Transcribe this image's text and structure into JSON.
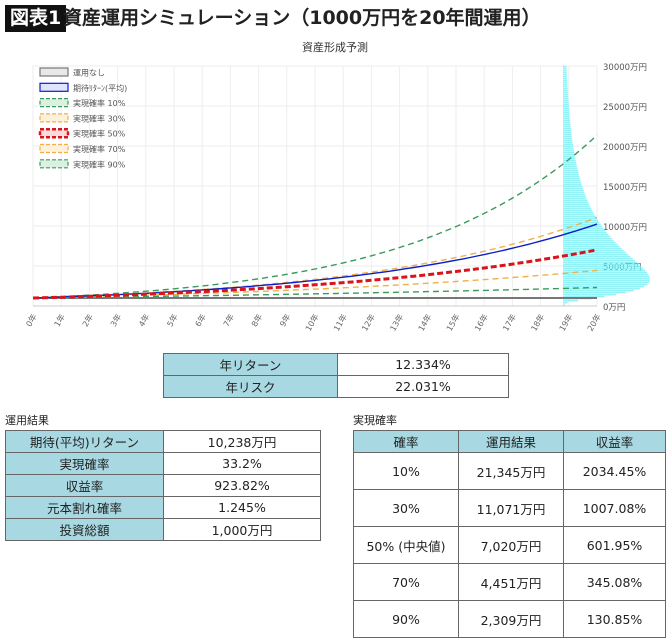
{
  "header": {
    "figure_label": "図表1",
    "title": "資産運用シミュレーション（1000万円を20年間運用）"
  },
  "chart_data": {
    "type": "line",
    "title": "資産形成予測",
    "x": [
      "0年",
      "1年",
      "2年",
      "3年",
      "4年",
      "5年",
      "6年",
      "7年",
      "8年",
      "9年",
      "10年",
      "11年",
      "12年",
      "13年",
      "14年",
      "15年",
      "16年",
      "17年",
      "18年",
      "19年",
      "20年"
    ],
    "y_ticks": [
      "0万円",
      "5000万円",
      "10000万円",
      "15000万円",
      "20000万円",
      "25000万円",
      "30000万円"
    ],
    "ylim": [
      0,
      30000
    ],
    "y_axis_position": "right",
    "grid": true,
    "legend_position": "top-left",
    "initial_value": 1000,
    "series": [
      {
        "name": "運用なし",
        "final": 1000,
        "color": "#777777",
        "style": "solid"
      },
      {
        "name": "期待ﾘﾀｰﾝ(平均)",
        "final": 10238,
        "color": "#0b1fc9",
        "style": "solid"
      },
      {
        "name": "実現確率 10%",
        "final": 21345,
        "color": "#3a9a5b",
        "style": "dashed"
      },
      {
        "name": "実現確率 30%",
        "final": 11071,
        "color": "#f0b048",
        "style": "dashed"
      },
      {
        "name": "実現確率 50%",
        "final": 7020,
        "color": "#d9141b",
        "style": "thick-dashed"
      },
      {
        "name": "実現確率 70%",
        "final": 4451,
        "color": "#f0b048",
        "style": "dashed"
      },
      {
        "name": "実現確率 90%",
        "final": 2309,
        "color": "#3a9a5b",
        "style": "dashed"
      }
    ],
    "distribution": {
      "type": "histogram",
      "color": "#7ff0f5"
    }
  },
  "params": {
    "rows": [
      {
        "label": "年リターン",
        "value": "12.334%"
      },
      {
        "label": "年リスク",
        "value": "22.031%"
      }
    ]
  },
  "results": {
    "heading": "運用結果",
    "rows": [
      {
        "label": "期待(平均)リターン",
        "value": "10,238万円"
      },
      {
        "label": "実現確率",
        "value": "33.2%"
      },
      {
        "label": "収益率",
        "value": "923.82%"
      },
      {
        "label": "元本割れ確率",
        "value": "1.245%"
      },
      {
        "label": "投資総額",
        "value": "1,000万円"
      }
    ]
  },
  "probability": {
    "heading": "実現確率",
    "columns": [
      "確率",
      "運用結果",
      "収益率"
    ],
    "rows": [
      [
        "10%",
        "21,345万円",
        "2034.45%"
      ],
      [
        "30%",
        "11,071万円",
        "1007.08%"
      ],
      [
        "50% (中央値)",
        "7,020万円",
        "601.95%"
      ],
      [
        "70%",
        "4,451万円",
        "345.08%"
      ],
      [
        "90%",
        "2,309万円",
        "130.85%"
      ]
    ]
  }
}
